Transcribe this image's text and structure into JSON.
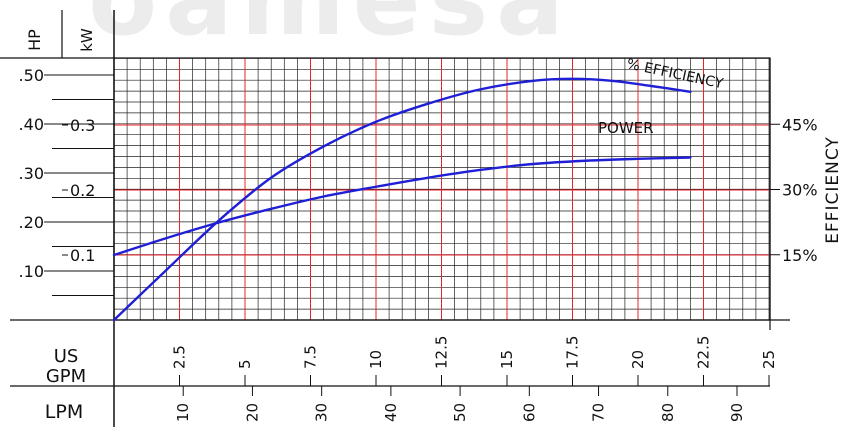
{
  "chart_data": {
    "type": "line",
    "watermark": "oamesa",
    "axes": {
      "hp": {
        "header": "HP",
        "ticks": [
          ".10",
          ".20",
          ".30",
          ".40",
          ".50"
        ],
        "values": [
          0.1,
          0.2,
          0.3,
          0.4,
          0.5
        ]
      },
      "kw": {
        "header": "kW",
        "ticks": [
          "0.1",
          "0.2",
          "0.3"
        ],
        "values": [
          0.1,
          0.2,
          0.3
        ]
      },
      "efficiency": {
        "title": "EFFICIENCY",
        "ticks": [
          "15%",
          "30%",
          "45%"
        ],
        "values": [
          15,
          30,
          45
        ]
      },
      "gpm": {
        "title_line1": "US",
        "title_line2": "GPM",
        "ticks": [
          "2.5",
          "5",
          "7.5",
          "10",
          "12.5",
          "15",
          "17.5",
          "20",
          "22.5",
          "25"
        ],
        "values": [
          2.5,
          5,
          7.5,
          10,
          12.5,
          15,
          17.5,
          20,
          22.5,
          25
        ]
      },
      "lpm": {
        "title": "LPM",
        "ticks": [
          "10",
          "20",
          "30",
          "40",
          "50",
          "60",
          "70",
          "80",
          "90"
        ],
        "values": [
          10,
          20,
          30,
          40,
          50,
          60,
          70,
          80,
          90
        ]
      }
    },
    "xlim_gpm": [
      0,
      25
    ],
    "ylim_kw": [
      0,
      0.4
    ],
    "grid": true,
    "series": [
      {
        "name": "POWER",
        "color": "#1f1fd6",
        "x_gpm": [
          0,
          2,
          4,
          6,
          8,
          10,
          12,
          14,
          16,
          18,
          20,
          22
        ],
        "y_kw": [
          0.1,
          0.126,
          0.15,
          0.171,
          0.19,
          0.205,
          0.219,
          0.231,
          0.24,
          0.245,
          0.248,
          0.25
        ]
      },
      {
        "name": "% EFFICIENCY",
        "color": "#1f1fd6",
        "x_gpm": [
          0,
          2,
          4,
          6,
          8,
          10,
          12,
          14,
          16,
          17.5,
          19,
          20.5,
          22
        ],
        "y_kw": [
          0,
          0.077,
          0.153,
          0.219,
          0.267,
          0.305,
          0.333,
          0.355,
          0.368,
          0.371,
          0.368,
          0.36,
          0.351
        ]
      }
    ]
  }
}
